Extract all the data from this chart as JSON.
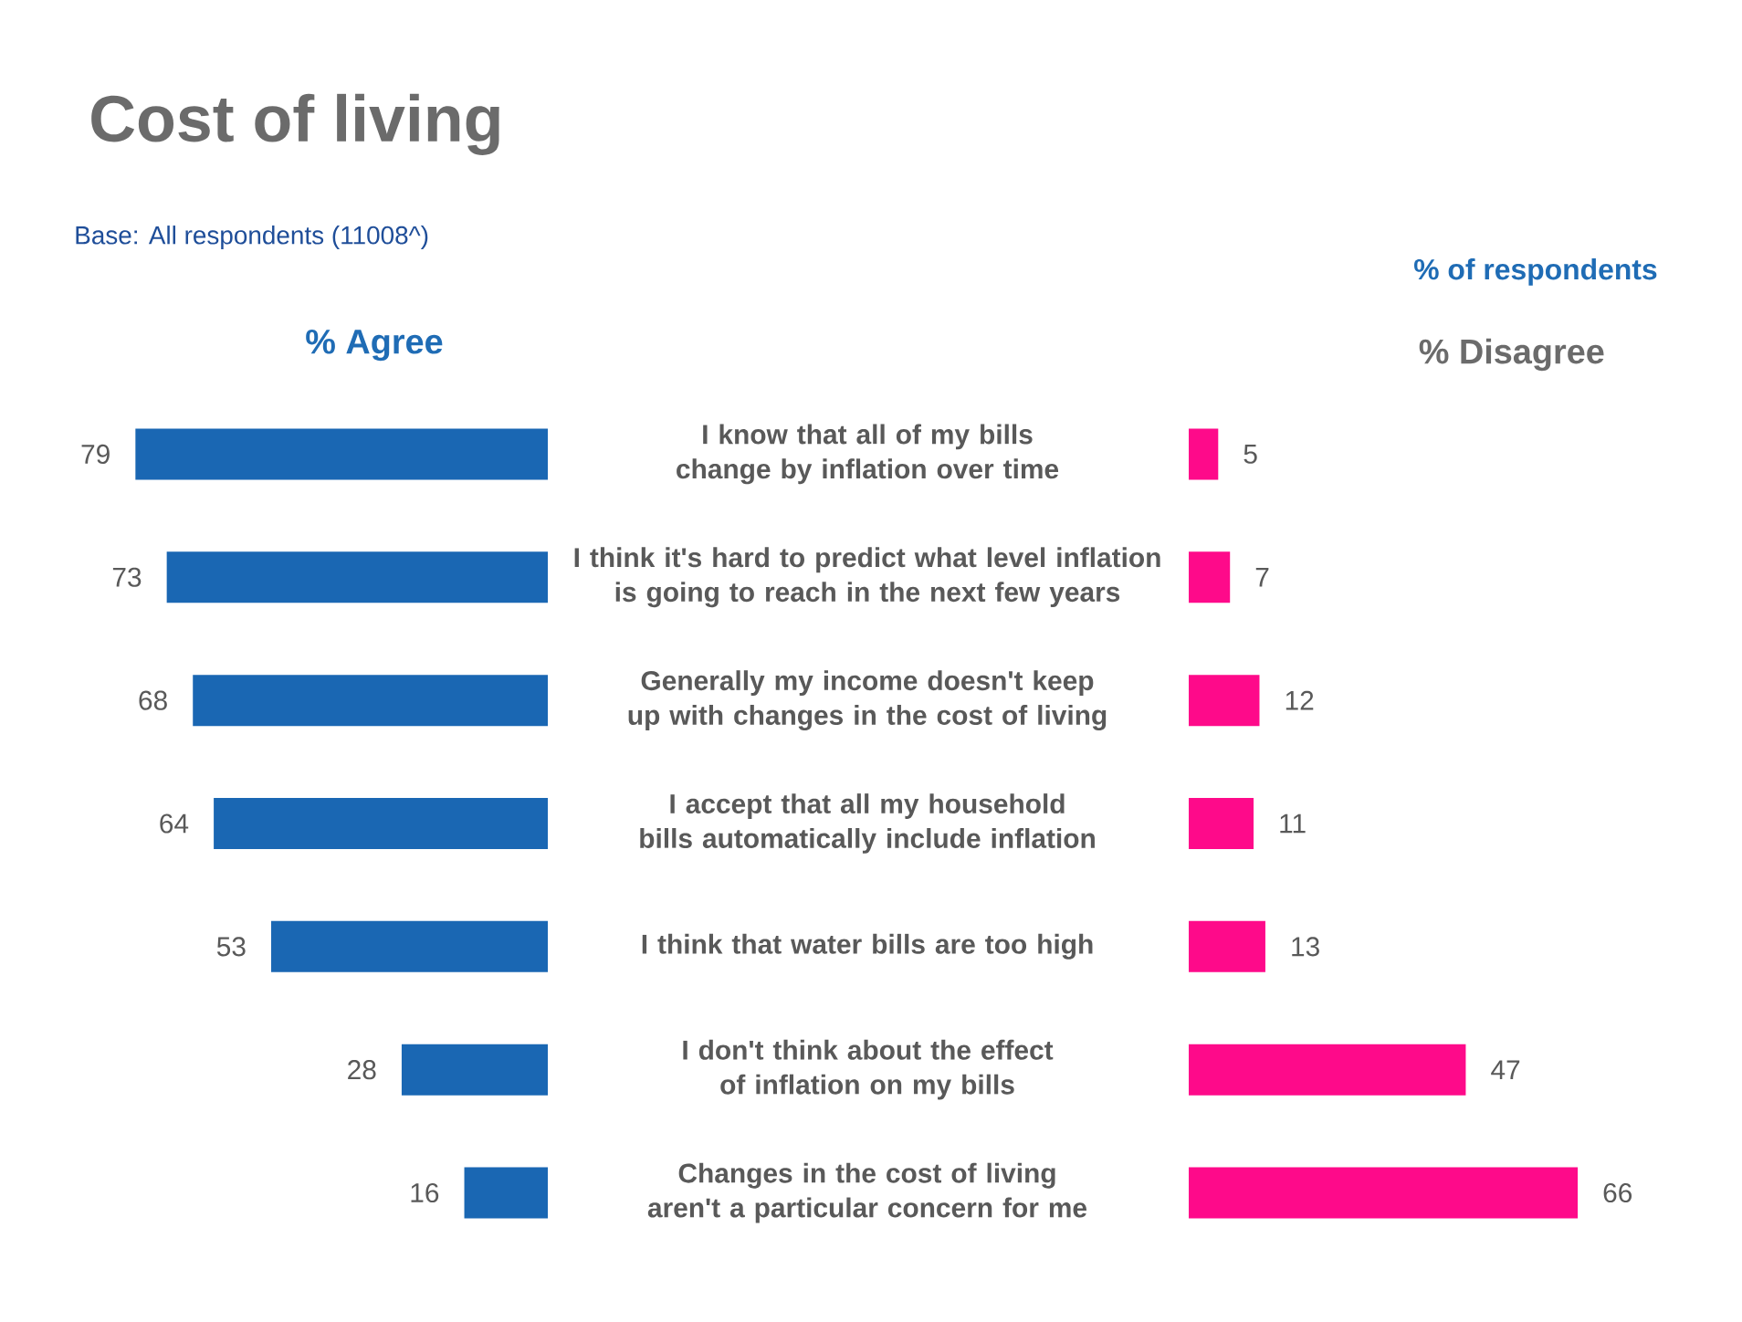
{
  "chart_data": [
    {
      "type": "bar",
      "orientation": "horizontal",
      "title": "Cost of living",
      "subtitle": "Base: All respondents (11008^)",
      "xlabel": "% Agree",
      "categories": [
        "I know that all of my bills change by inflation over time",
        "I think it's hard to predict what level inflation is going to reach in the next few years",
        "Generally my income doesn't keep up with changes in the cost of living",
        "I accept that all my household bills automatically include inflation",
        "I think that water bills are too high",
        "I don't think about the effect of inflation on my bills",
        "Changes in the cost of living aren't a particular concern for me"
      ],
      "values": [
        79,
        73,
        68,
        64,
        53,
        28,
        16
      ],
      "color": "#1a67b3",
      "data_labels": true,
      "tick_labels": "y"
    },
    {
      "type": "bar",
      "orientation": "horizontal",
      "xlabel": "% Disagree",
      "annotations": [
        "% of respondents"
      ],
      "values": [
        5,
        7,
        12,
        11,
        13,
        47,
        66
      ],
      "color": "#fe0a8a",
      "data_labels": true,
      "tick_labels": false
    }
  ]
}
